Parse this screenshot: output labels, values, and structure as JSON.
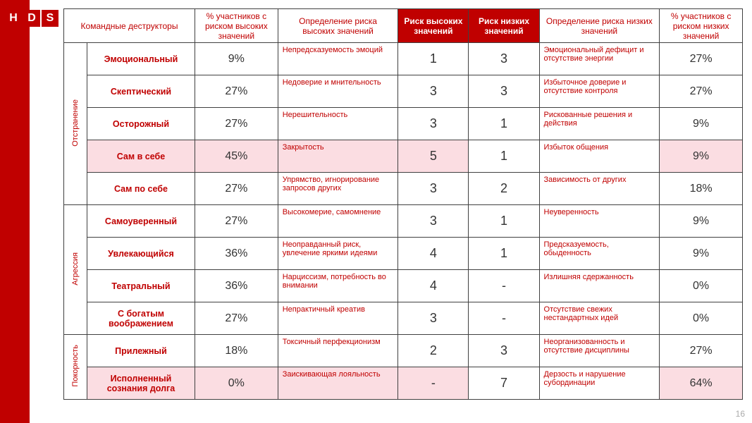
{
  "logo": [
    "H",
    "D",
    "S"
  ],
  "headers": {
    "destructors": "Командные деструкторы",
    "pct_high": "% участников с риском высоких значений",
    "def_high": "Определение риска высоких значений",
    "risk_high": "Риск высоких значений",
    "risk_low": "Риск низких значений",
    "def_low": "Определение риска низких значений",
    "pct_low": "% участников с риском низких значений"
  },
  "groups": [
    {
      "label": "Отстранение",
      "rows": [
        {
          "name": "Эмоциональный",
          "pct_high": "9%",
          "def_high": "Непредсказуемость эмоций",
          "risk_high": "1",
          "risk_low": "3",
          "def_low": "Эмоциональный дефицит и отсутствие энергии",
          "pct_low": "27%",
          "hl": false
        },
        {
          "name": "Скептический",
          "pct_high": "27%",
          "def_high": "Недоверие и мнительность",
          "risk_high": "3",
          "risk_low": "3",
          "def_low": "Избыточное доверие и отсутствие контроля",
          "pct_low": "27%",
          "hl": false
        },
        {
          "name": "Осторожный",
          "pct_high": "27%",
          "def_high": "Нерешительность",
          "risk_high": "3",
          "risk_low": "1",
          "def_low": "Рискованные решения и действия",
          "pct_low": "9%",
          "hl": false
        },
        {
          "name": "Сам в себе",
          "pct_high": "45%",
          "def_high": "Закрытость",
          "risk_high": "5",
          "risk_low": "1",
          "def_low": "Избыток общения",
          "pct_low": "9%",
          "hl": true
        },
        {
          "name": "Сам по себе",
          "pct_high": "27%",
          "def_high": "Упрямство, игнорирование запросов других",
          "risk_high": "3",
          "risk_low": "2",
          "def_low": "Зависимость от других",
          "pct_low": "18%",
          "hl": false
        }
      ]
    },
    {
      "label": "Агрессия",
      "rows": [
        {
          "name": "Самоуверенный",
          "pct_high": "27%",
          "def_high": "Высокомерие, самомнение",
          "risk_high": "3",
          "risk_low": "1",
          "def_low": "Неуверенность",
          "pct_low": "9%",
          "hl": false
        },
        {
          "name": "Увлекающийся",
          "pct_high": "36%",
          "def_high": "Неоправданный риск, увлечение яркими идеями",
          "risk_high": "4",
          "risk_low": "1",
          "def_low": "Предсказуемость, обыденность",
          "pct_low": "9%",
          "hl": false
        },
        {
          "name": "Театральный",
          "pct_high": "36%",
          "def_high": "Нарциссизм, потребность во внимании",
          "risk_high": "4",
          "risk_low": "-",
          "def_low": "Излишняя сдержанность",
          "pct_low": "0%",
          "hl": false
        },
        {
          "name": "С богатым воображением",
          "pct_high": "27%",
          "def_high": "Непрактичный креатив",
          "risk_high": "3",
          "risk_low": "-",
          "def_low": "Отсутствие свежих нестандартных идей",
          "pct_low": "0%",
          "hl": false
        }
      ]
    },
    {
      "label": "Покорность",
      "rows": [
        {
          "name": "Прилежный",
          "pct_high": "18%",
          "def_high": "Токсичный перфекционизм",
          "risk_high": "2",
          "risk_low": "3",
          "def_low": "Неорганизованность и отсутствие дисциплины",
          "pct_low": "27%",
          "hl": false
        },
        {
          "name": "Исполненный сознания долга",
          "pct_high": "0%",
          "def_high": "Заискивающая лояльность",
          "risk_high": "-",
          "risk_low": "7",
          "def_low": "Дерзость и нарушение субординации",
          "pct_low": "64%",
          "hl": true
        }
      ]
    }
  ],
  "col_widths": {
    "group": 28,
    "name": 130,
    "pct": 100,
    "def": 145,
    "num": 85
  },
  "page_number": "16",
  "colors": {
    "primary_red": "#c00000",
    "highlight_pink": "#fbdde2",
    "border": "#404040",
    "text_dark": "#333333"
  }
}
